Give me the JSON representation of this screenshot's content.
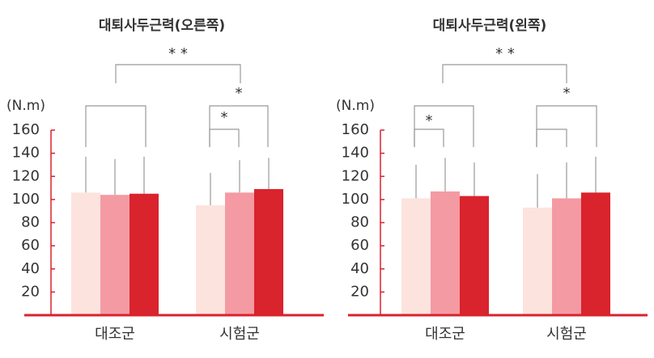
{
  "chart_data": [
    {
      "type": "bar",
      "title": "대퇴사두근력(오른쪽)",
      "y_label": "(N.m)",
      "categories": [
        "대조군",
        "시험군"
      ],
      "series": [
        {
          "color": "#fce3de",
          "values": [
            106,
            95
          ],
          "errors": [
            31,
            28
          ]
        },
        {
          "color": "#f49aa3",
          "values": [
            104,
            106
          ],
          "errors": [
            31,
            28
          ]
        },
        {
          "color": "#d9232d",
          "values": [
            105,
            109
          ],
          "errors": [
            32,
            27
          ]
        }
      ],
      "ylim": [
        0,
        160
      ],
      "yticks": [
        20,
        40,
        60,
        80,
        100,
        120,
        140,
        160
      ],
      "annotations": [
        "* *",
        "*",
        "*"
      ]
    },
    {
      "type": "bar",
      "title": "대퇴사두근력(왼쪽)",
      "y_label": "(N.m)",
      "categories": [
        "대조군",
        "시험군"
      ],
      "series": [
        {
          "color": "#fce3de",
          "values": [
            101,
            93
          ],
          "errors": [
            29,
            29
          ]
        },
        {
          "color": "#f49aa3",
          "values": [
            107,
            101
          ],
          "errors": [
            29,
            31
          ]
        },
        {
          "color": "#d9232d",
          "values": [
            103,
            106
          ],
          "errors": [
            29,
            31
          ]
        }
      ],
      "ylim": [
        0,
        160
      ],
      "yticks": [
        20,
        40,
        60,
        80,
        100,
        120,
        140,
        160
      ],
      "annotations": [
        "* *",
        "*",
        "*"
      ]
    }
  ]
}
